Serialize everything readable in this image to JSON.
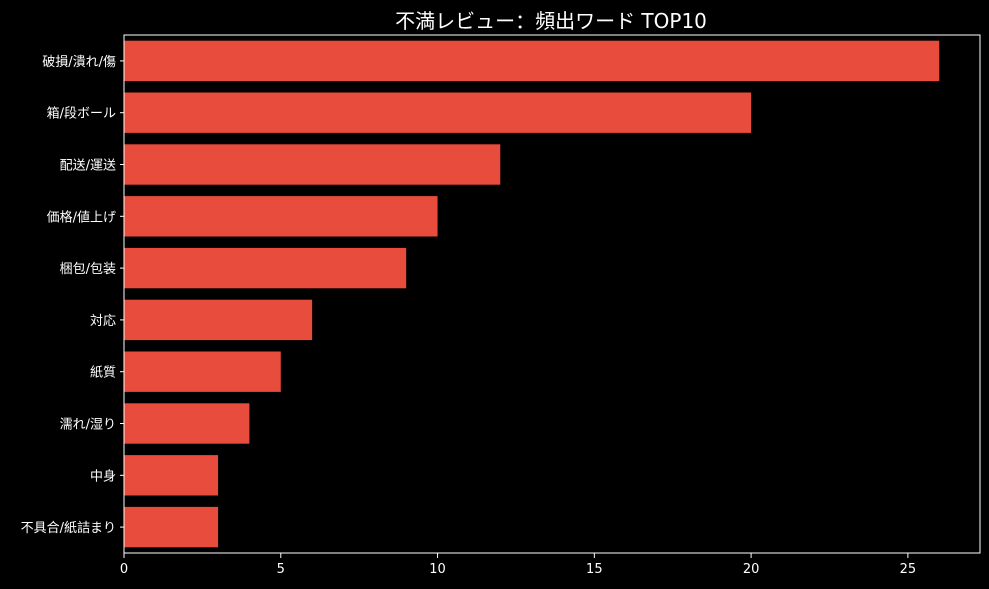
{
  "colors": {
    "background": "#000000",
    "bar": "#e74c3c",
    "text": "#ffffff",
    "axis": "#ffffff"
  },
  "chart_data": {
    "type": "bar",
    "orientation": "horizontal",
    "title": "不満レビュー：頻出ワード TOP10",
    "xlabel": "",
    "ylabel": "",
    "categories": [
      "破損/潰れ/傷",
      "箱/段ボール",
      "配送/運送",
      "価格/値上げ",
      "梱包/包装",
      "対応",
      "紙質",
      "濡れ/湿り",
      "中身",
      "不具合/紙詰まり"
    ],
    "values": [
      26,
      20,
      12,
      10,
      9,
      6,
      5,
      4,
      3,
      3
    ],
    "xlim": [
      0,
      27.3
    ],
    "xticks": [
      0,
      5,
      10,
      15,
      20,
      25
    ],
    "grid": false,
    "legend": "none"
  }
}
